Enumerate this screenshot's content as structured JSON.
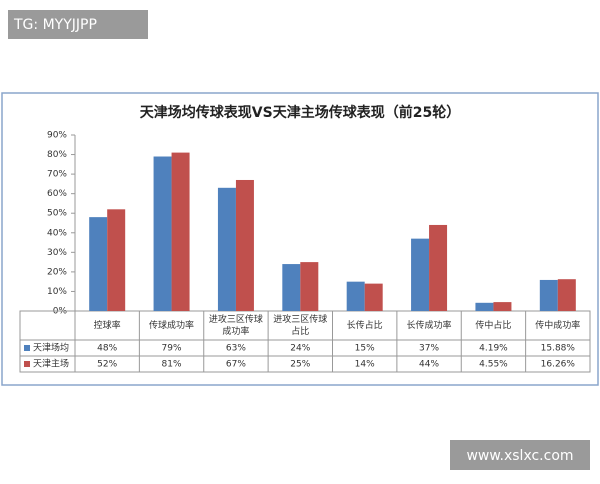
{
  "chart_data": {
    "type": "bar",
    "title": "天津场均传球表现VS天津主场传球表现（前25轮）",
    "categories": [
      "控球率",
      "传球成功率",
      "进攻三区传球成功率",
      "进攻三区传球占比",
      "长传占比",
      "长传成功率",
      "传中占比",
      "传中成功率"
    ],
    "series": [
      {
        "name": "天津场均",
        "color": "#4f81bd",
        "values": [
          48,
          79,
          63,
          24,
          15,
          37,
          4.19,
          15.88
        ],
        "value_labels": [
          "48%",
          "79%",
          "63%",
          "24%",
          "15%",
          "37%",
          "4.19%",
          "15.88%"
        ]
      },
      {
        "name": "天津主场",
        "color": "#c0504d",
        "values": [
          52,
          81,
          67,
          25,
          14,
          44,
          4.55,
          16.26
        ],
        "value_labels": [
          "52%",
          "81%",
          "67%",
          "25%",
          "14%",
          "44%",
          "4.55%",
          "16.26%"
        ]
      }
    ],
    "ylim": [
      0,
      90
    ],
    "yticks": [
      {
        "value": 0,
        "label": "0%"
      },
      {
        "value": 10,
        "label": "10%"
      },
      {
        "value": 20,
        "label": "20%"
      },
      {
        "value": 30,
        "label": "30%"
      },
      {
        "value": 40,
        "label": "40%"
      },
      {
        "value": 50,
        "label": "50%"
      },
      {
        "value": 60,
        "label": "60%"
      },
      {
        "value": 70,
        "label": "70%"
      },
      {
        "value": 80,
        "label": "80%"
      },
      {
        "value": 90,
        "label": "90%"
      }
    ],
    "grid": false
  },
  "watermarks": [
    "TG: MYYJJPP",
    "www.xslxc.com"
  ]
}
